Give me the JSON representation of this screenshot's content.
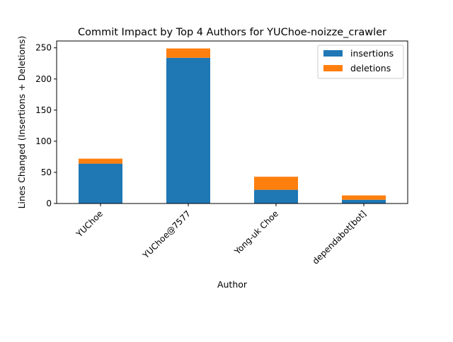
{
  "chart_data": {
    "type": "bar",
    "stacked": true,
    "title": "Commit Impact by Top 4 Authors for YUChoe-noizze_crawler",
    "xlabel": "Author",
    "ylabel": "Lines Changed (Insertions + Deletions)",
    "categories": [
      "YUChoe",
      "YUChoe@7577",
      "Yong-uk Choe",
      "dependabot[bot]"
    ],
    "series": [
      {
        "name": "insertions",
        "color": "#1f77b4",
        "values": [
          64,
          234,
          22,
          6
        ]
      },
      {
        "name": "deletions",
        "color": "#ff7f0e",
        "values": [
          8,
          15,
          21,
          7
        ]
      }
    ],
    "ylim": [
      0,
      261
    ],
    "yticks": [
      0,
      50,
      100,
      150,
      200,
      250
    ],
    "grid": false,
    "legend_position": "top-right"
  }
}
